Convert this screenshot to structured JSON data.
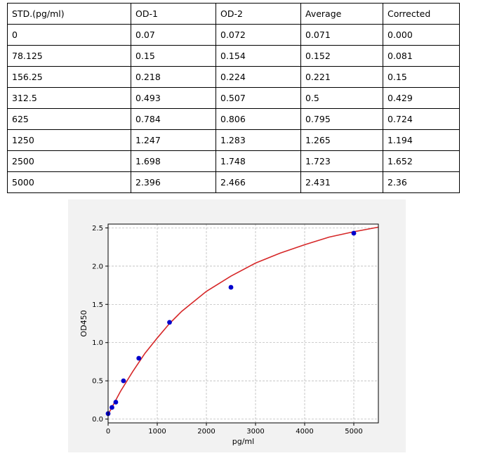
{
  "table": {
    "headers": [
      "STD.(pg/ml)",
      "OD-1",
      "OD-2",
      "Average",
      "Corrected"
    ],
    "rows": [
      [
        "0",
        "0.07",
        "0.072",
        "0.071",
        "0.000"
      ],
      [
        "78.125",
        "0.15",
        "0.154",
        "0.152",
        "0.081"
      ],
      [
        "156.25",
        "0.218",
        "0.224",
        "0.221",
        "0.15"
      ],
      [
        "312.5",
        "0.493",
        "0.507",
        "0.5",
        "0.429"
      ],
      [
        "625",
        "0.784",
        "0.806",
        "0.795",
        "0.724"
      ],
      [
        "1250",
        "1.247",
        "1.283",
        "1.265",
        "1.194"
      ],
      [
        "2500",
        "1.698",
        "1.748",
        "1.723",
        "1.652"
      ],
      [
        "5000",
        "2.396",
        "2.466",
        "2.431",
        "2.36"
      ]
    ]
  },
  "chart_data": {
    "type": "scatter",
    "xlabel": "pg/ml",
    "ylabel": "OD450",
    "xlim": [
      0,
      5500
    ],
    "ylim": [
      -0.05,
      2.55
    ],
    "xticks": [
      0,
      1000,
      2000,
      3000,
      4000,
      5000
    ],
    "yticks": [
      0.0,
      0.5,
      1.0,
      1.5,
      2.0,
      2.5
    ],
    "grid": true,
    "points": {
      "x": [
        0,
        78.125,
        156.25,
        312.5,
        625,
        1250,
        2500,
        5000
      ],
      "y": [
        0.071,
        0.152,
        0.221,
        0.5,
        0.795,
        1.265,
        1.723,
        2.431
      ]
    },
    "fit_curve": {
      "x": [
        0,
        250,
        500,
        750,
        1000,
        1250,
        1500,
        2000,
        2500,
        3000,
        3500,
        4000,
        4500,
        5000,
        5500
      ],
      "y": [
        0.06,
        0.36,
        0.62,
        0.86,
        1.06,
        1.25,
        1.41,
        1.67,
        1.87,
        2.04,
        2.17,
        2.28,
        2.38,
        2.45,
        2.51
      ]
    },
    "colors": {
      "points": "#0000cc",
      "curve": "#d62728",
      "grid": "#b0b0b0"
    }
  }
}
